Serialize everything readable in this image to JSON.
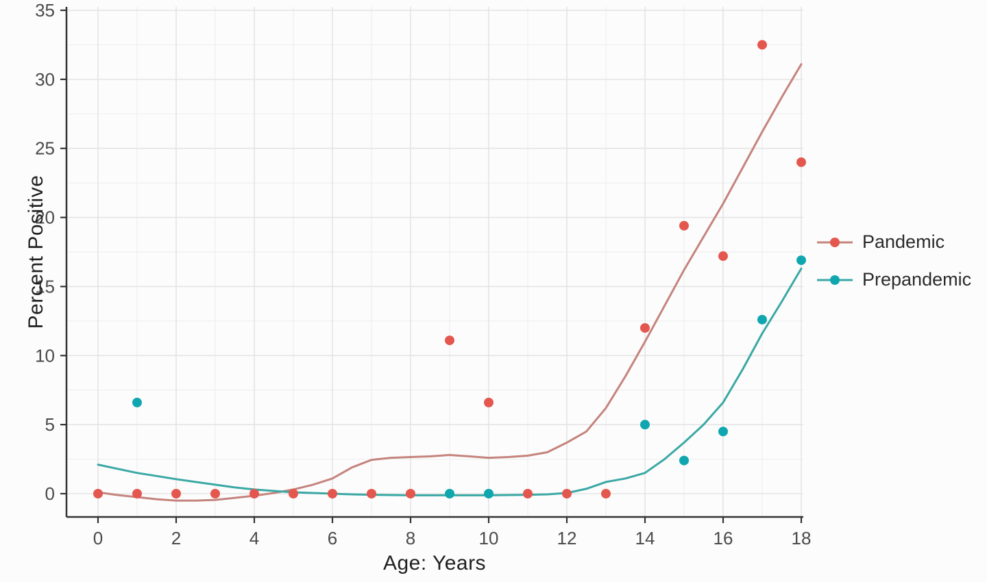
{
  "chart_data": {
    "type": "scatter",
    "title": "",
    "xlabel": "Age: Years",
    "ylabel": "Percent Positive",
    "xlim": [
      0,
      18
    ],
    "ylim": [
      0,
      35
    ],
    "x_ticks": [
      0,
      2,
      4,
      6,
      8,
      10,
      12,
      14,
      16,
      18
    ],
    "x_minor_ticks": [
      1,
      3,
      5,
      7,
      9,
      11,
      13,
      15,
      17
    ],
    "y_ticks": [
      0,
      5,
      10,
      15,
      20,
      25,
      30,
      35
    ],
    "y_minor_ticks": [
      2.5,
      7.5,
      12.5,
      17.5,
      22.5,
      27.5,
      32.5
    ],
    "grid": true,
    "legend_position": "right",
    "colors": {
      "pandemic_point": "#e4574e",
      "pandemic_line": "#c5837d",
      "prepandemic_point": "#0fa6b0",
      "prepandemic_line": "#3aa8a4",
      "grid_major": "#e4e4e4",
      "grid_minor": "#efefef",
      "axis_line": "#333333",
      "tick_text": "#4a4a4a"
    },
    "series": [
      {
        "name": "Pandemic",
        "point_color": "#e4574e",
        "line_color": "#c5837d",
        "points": [
          [
            0,
            0
          ],
          [
            1,
            0
          ],
          [
            2,
            0
          ],
          [
            3,
            0
          ],
          [
            4,
            0
          ],
          [
            5,
            0
          ],
          [
            6,
            0
          ],
          [
            7,
            0
          ],
          [
            8,
            0
          ],
          [
            9,
            11.1
          ],
          [
            10,
            6.6
          ],
          [
            11,
            0
          ],
          [
            12,
            0
          ],
          [
            13,
            0
          ],
          [
            14,
            12.0
          ],
          [
            15,
            19.4
          ],
          [
            16,
            17.2
          ],
          [
            17,
            32.5
          ],
          [
            18,
            24.0
          ]
        ],
        "smooth": [
          [
            0,
            0.1
          ],
          [
            0.5,
            -0.1
          ],
          [
            1,
            -0.25
          ],
          [
            1.5,
            -0.4
          ],
          [
            2,
            -0.5
          ],
          [
            2.5,
            -0.5
          ],
          [
            3,
            -0.45
          ],
          [
            3.5,
            -0.3
          ],
          [
            4,
            -0.15
          ],
          [
            4.5,
            0.05
          ],
          [
            5,
            0.3
          ],
          [
            5.5,
            0.65
          ],
          [
            6,
            1.1
          ],
          [
            6.5,
            1.9
          ],
          [
            7,
            2.45
          ],
          [
            7.5,
            2.6
          ],
          [
            8,
            2.65
          ],
          [
            8.5,
            2.7
          ],
          [
            9,
            2.8
          ],
          [
            9.5,
            2.7
          ],
          [
            10,
            2.6
          ],
          [
            10.5,
            2.65
          ],
          [
            11,
            2.75
          ],
          [
            11.5,
            3.0
          ],
          [
            12,
            3.7
          ],
          [
            12.5,
            4.5
          ],
          [
            13,
            6.2
          ],
          [
            13.5,
            8.5
          ],
          [
            14,
            11.0
          ],
          [
            14.5,
            13.6
          ],
          [
            15,
            16.2
          ],
          [
            15.5,
            18.6
          ],
          [
            16,
            21.0
          ],
          [
            16.5,
            23.6
          ],
          [
            17,
            26.2
          ],
          [
            17.5,
            28.7
          ],
          [
            18,
            31.1
          ]
        ]
      },
      {
        "name": "Prepandemic",
        "point_color": "#0fa6b0",
        "line_color": "#3aa8a4",
        "points": [
          [
            1,
            6.6
          ],
          [
            9,
            0
          ],
          [
            10,
            0
          ],
          [
            14,
            5.0
          ],
          [
            15,
            2.4
          ],
          [
            16,
            4.5
          ],
          [
            17,
            12.6
          ],
          [
            18,
            16.9
          ]
        ],
        "smooth": [
          [
            0,
            2.1
          ],
          [
            0.5,
            1.8
          ],
          [
            1,
            1.5
          ],
          [
            1.5,
            1.28
          ],
          [
            2,
            1.05
          ],
          [
            2.5,
            0.85
          ],
          [
            3,
            0.65
          ],
          [
            3.5,
            0.45
          ],
          [
            4,
            0.3
          ],
          [
            4.5,
            0.2
          ],
          [
            5,
            0.1
          ],
          [
            5.5,
            0.05
          ],
          [
            6,
            0
          ],
          [
            6.5,
            -0.05
          ],
          [
            7,
            -0.08
          ],
          [
            7.5,
            -0.1
          ],
          [
            8,
            -0.12
          ],
          [
            8.5,
            -0.12
          ],
          [
            9,
            -0.12
          ],
          [
            9.5,
            -0.12
          ],
          [
            10,
            -0.12
          ],
          [
            10.5,
            -0.1
          ],
          [
            11,
            -0.08
          ],
          [
            11.5,
            -0.05
          ],
          [
            12,
            0.05
          ],
          [
            12.5,
            0.35
          ],
          [
            13,
            0.85
          ],
          [
            13.5,
            1.1
          ],
          [
            14,
            1.5
          ],
          [
            14.5,
            2.5
          ],
          [
            15,
            3.7
          ],
          [
            15.5,
            5.0
          ],
          [
            16,
            6.6
          ],
          [
            16.5,
            9.0
          ],
          [
            17,
            11.6
          ],
          [
            17.5,
            13.9
          ],
          [
            18,
            16.3
          ]
        ]
      }
    ]
  }
}
